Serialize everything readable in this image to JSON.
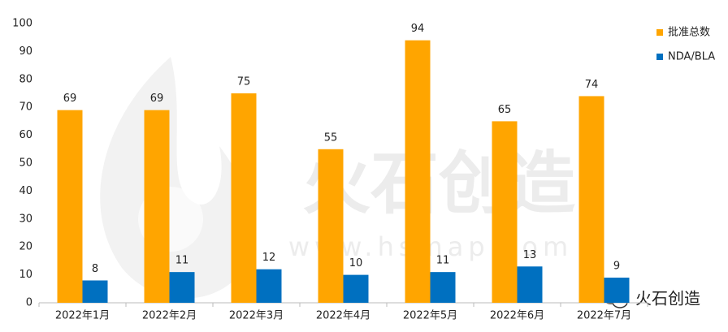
{
  "chart_data": {
    "type": "bar",
    "categories": [
      "2022年1月",
      "2022年2月",
      "2022年3月",
      "2022年4月",
      "2022年5月",
      "2022年6月",
      "2022年7月"
    ],
    "series": [
      {
        "name": "批准总数",
        "color": "#ffa500",
        "values": [
          69,
          69,
          75,
          55,
          94,
          65,
          74
        ]
      },
      {
        "name": "NDA/BLA",
        "color": "#0070c0",
        "values": [
          8,
          11,
          12,
          10,
          11,
          13,
          9
        ]
      }
    ],
    "ylim": [
      0,
      100
    ],
    "yticks": [
      0,
      10,
      20,
      30,
      40,
      50,
      60,
      70,
      80,
      90,
      100
    ],
    "grid": false,
    "legend": "top-right",
    "watermark": "火石创造",
    "watermark_url": "www.hsmap.com",
    "logo_text": "火石创造"
  }
}
